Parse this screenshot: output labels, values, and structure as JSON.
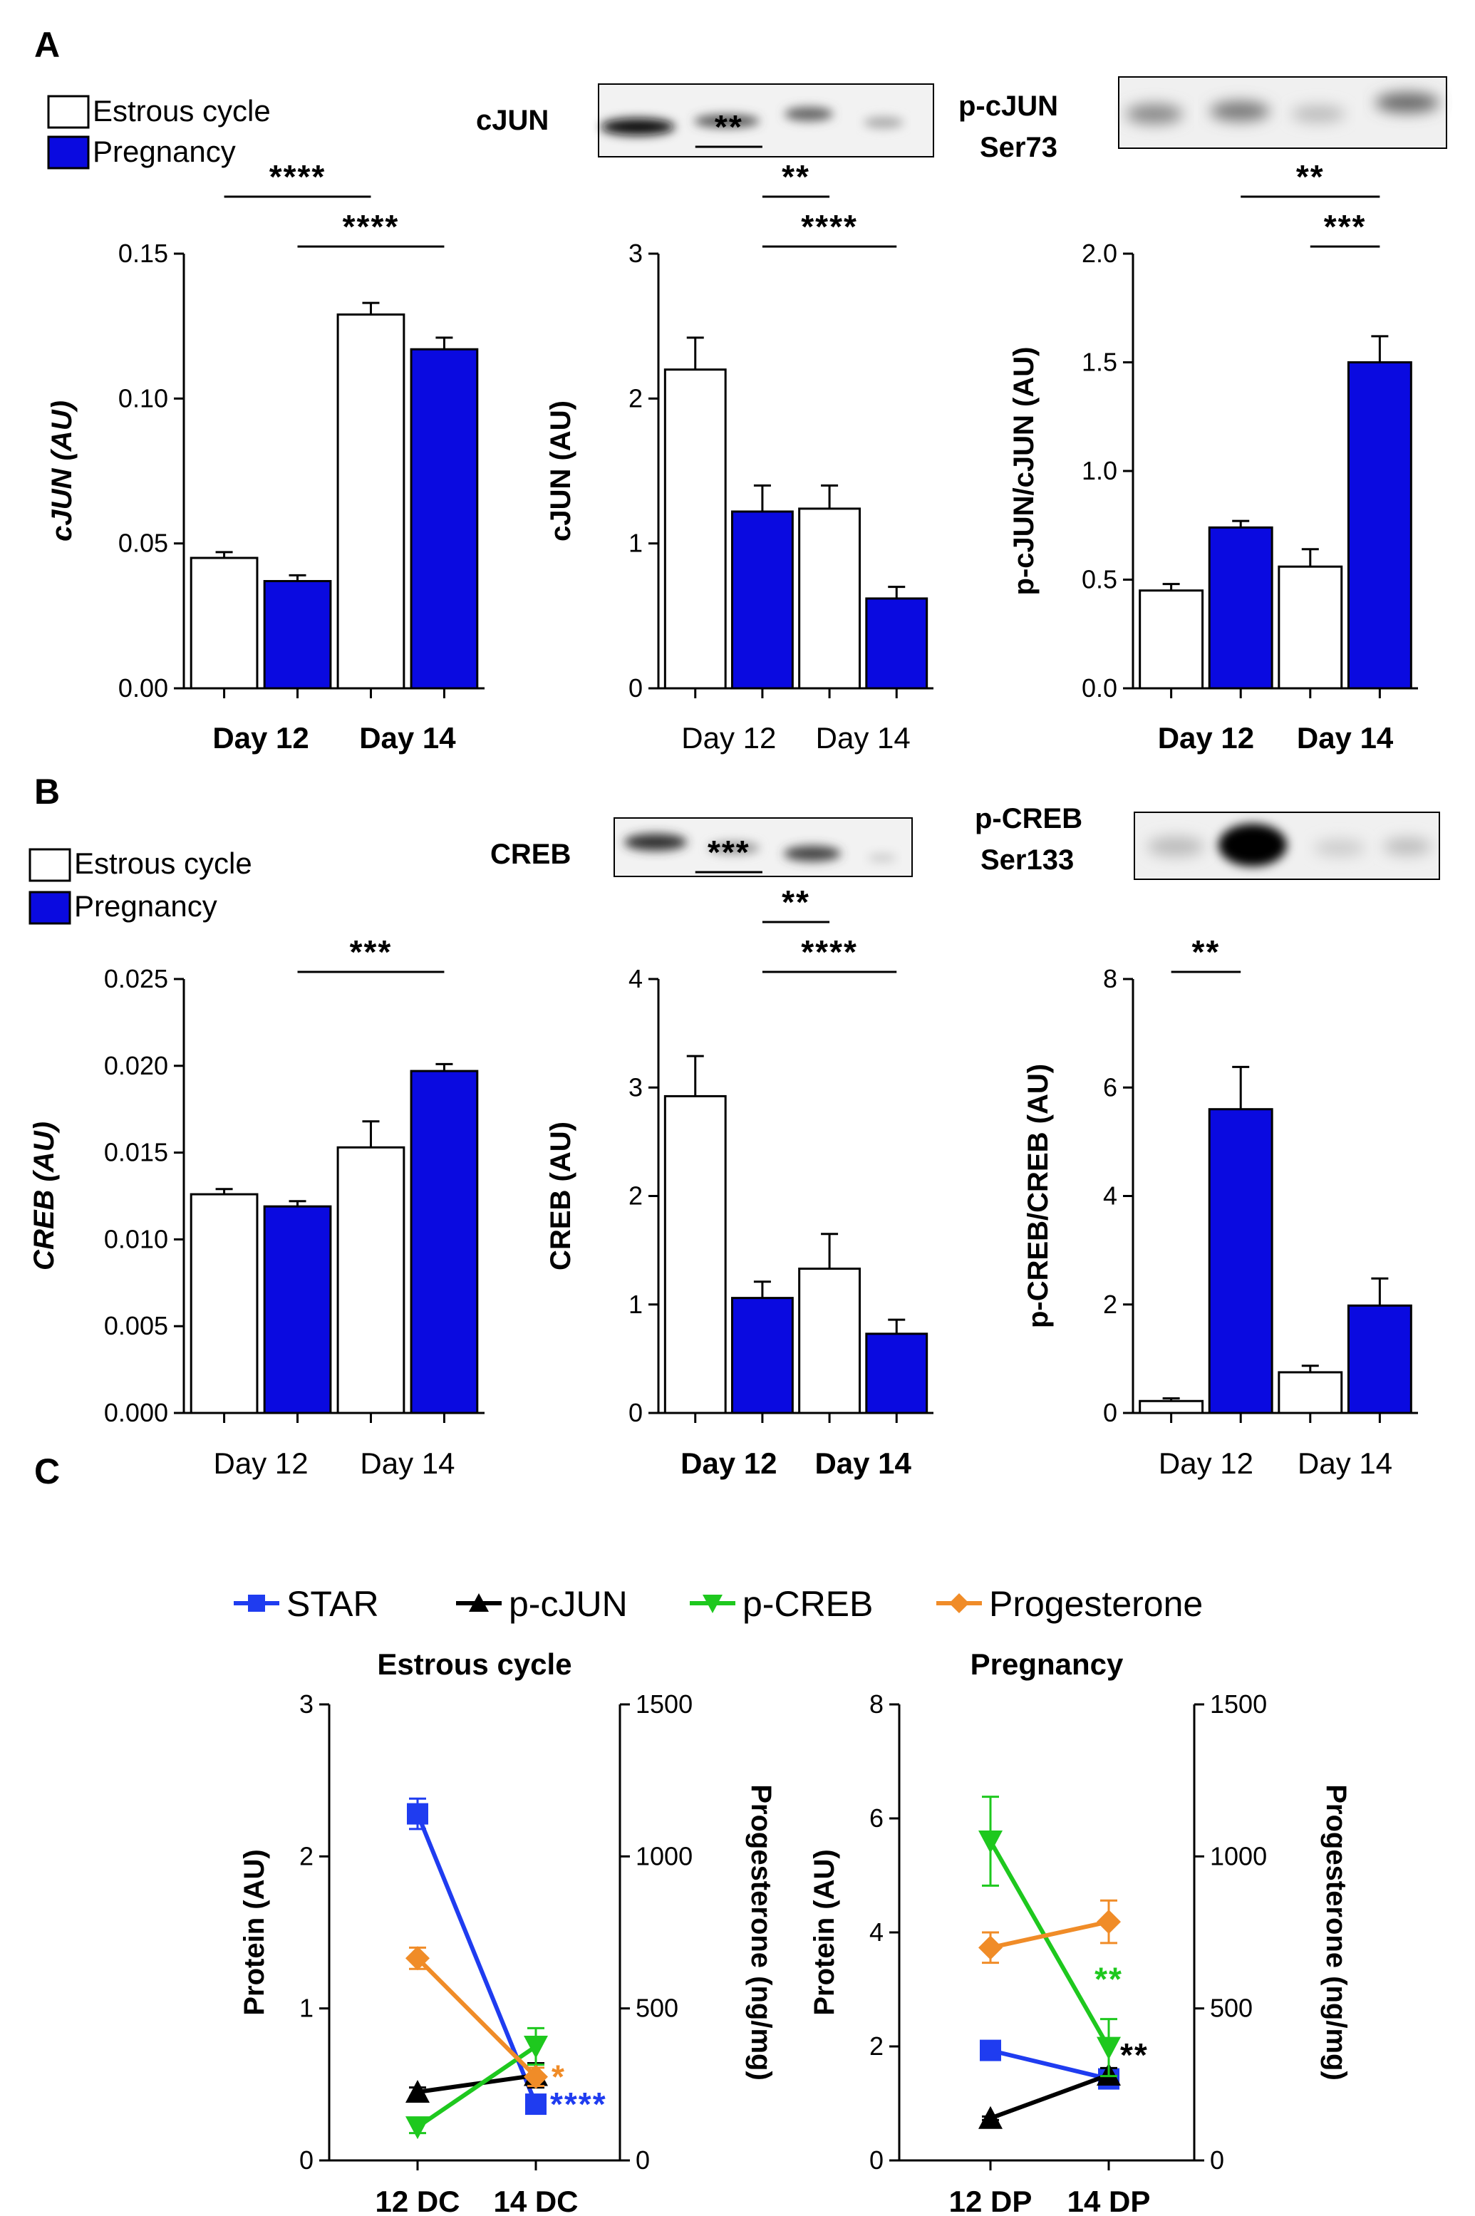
{
  "colors": {
    "pregnancy": "#0a0ae0",
    "estrous": "#ffffff",
    "star": "#1f3cf0",
    "pcjun": "#000000",
    "pcreb": "#1ec81e",
    "progesterone": "#f08c28"
  },
  "panelA": {
    "letter": "A",
    "legend": [
      "Estrous cycle",
      "Pregnancy"
    ],
    "blots": {
      "cjun": "cJUN",
      "pcjun_line1": "p-cJUN",
      "pcjun_line2": "Ser73"
    }
  },
  "panelB": {
    "letter": "B",
    "legend": [
      "Estrous cycle",
      "Pregnancy"
    ],
    "blots": {
      "creb": "CREB",
      "pcreb_line1": "p-CREB",
      "pcreb_line2": "Ser133"
    }
  },
  "panelC": {
    "letter": "C",
    "legend": [
      "STAR",
      "p-cJUN",
      "p-CREB",
      "Progesterone"
    ]
  },
  "chart_data": [
    {
      "id": "a1",
      "type": "bar",
      "ylabel": "cJUN (AU)",
      "italic": true,
      "ylim": [
        0,
        0.15
      ],
      "ticks": [
        "0.00",
        "0.05",
        "0.10",
        "0.15"
      ],
      "tickVals": [
        0,
        0.05,
        0.1,
        0.15
      ],
      "xlabels": [
        "Day 12",
        "Day 14"
      ],
      "xbold": true,
      "bars": [
        {
          "group": "Estrous cycle",
          "day": "Day 12",
          "value": 0.045,
          "err": 0.002
        },
        {
          "group": "Pregnancy",
          "day": "Day 12",
          "value": 0.037,
          "err": 0.002
        },
        {
          "group": "Estrous cycle",
          "day": "Day 14",
          "value": 0.129,
          "err": 0.004
        },
        {
          "group": "Pregnancy",
          "day": "Day 14",
          "value": 0.117,
          "err": 0.004
        }
      ],
      "sig": [
        {
          "from": 0,
          "to": 2,
          "label": "****"
        },
        {
          "from": 1,
          "to": 3,
          "label": "****"
        }
      ]
    },
    {
      "id": "a2",
      "type": "bar",
      "ylabel": "cJUN (AU)",
      "italic": false,
      "ylim": [
        0,
        3
      ],
      "ticks": [
        "0",
        "1",
        "2",
        "3"
      ],
      "tickVals": [
        0,
        1,
        2,
        3
      ],
      "xlabels": [
        "Day 12",
        "Day 14"
      ],
      "xbold": false,
      "bars": [
        {
          "group": "Estrous cycle",
          "day": "Day 12",
          "value": 2.2,
          "err": 0.22
        },
        {
          "group": "Pregnancy",
          "day": "Day 12",
          "value": 1.22,
          "err": 0.18
        },
        {
          "group": "Estrous cycle",
          "day": "Day 14",
          "value": 1.24,
          "err": 0.16
        },
        {
          "group": "Pregnancy",
          "day": "Day 14",
          "value": 0.62,
          "err": 0.08
        }
      ],
      "sig": [
        {
          "from": 0,
          "to": 1,
          "label": "**"
        },
        {
          "from": 1,
          "to": 2,
          "label": "**"
        },
        {
          "from": 1,
          "to": 3,
          "label": "****"
        }
      ]
    },
    {
      "id": "a3",
      "type": "bar",
      "ylabel": "p-cJUN/cJUN (AU)",
      "italic": false,
      "ylim": [
        0,
        2
      ],
      "ticks": [
        "0.0",
        "0.5",
        "1.0",
        "1.5",
        "2.0"
      ],
      "tickVals": [
        0,
        0.5,
        1,
        1.5,
        2
      ],
      "xlabels": [
        "Day 12",
        "Day 14"
      ],
      "xbold": true,
      "bars": [
        {
          "group": "Estrous cycle",
          "day": "Day 12",
          "value": 0.45,
          "err": 0.03
        },
        {
          "group": "Pregnancy",
          "day": "Day 12",
          "value": 0.74,
          "err": 0.03
        },
        {
          "group": "Estrous cycle",
          "day": "Day 14",
          "value": 0.56,
          "err": 0.08
        },
        {
          "group": "Pregnancy",
          "day": "Day 14",
          "value": 1.5,
          "err": 0.12
        }
      ],
      "sig": [
        {
          "from": 1,
          "to": 3,
          "label": "**"
        },
        {
          "from": 2,
          "to": 3,
          "label": "***"
        }
      ]
    },
    {
      "id": "b1",
      "type": "bar",
      "ylabel": "CREB (AU)",
      "italic": true,
      "ylim": [
        0,
        0.025
      ],
      "ticks": [
        "0.000",
        "0.005",
        "0.010",
        "0.015",
        "0.020",
        "0.025"
      ],
      "tickVals": [
        0,
        0.005,
        0.01,
        0.015,
        0.02,
        0.025
      ],
      "xlabels": [
        "Day 12",
        "Day 14"
      ],
      "xbold": false,
      "bars": [
        {
          "group": "Estrous cycle",
          "day": "Day 12",
          "value": 0.0126,
          "err": 0.0003
        },
        {
          "group": "Pregnancy",
          "day": "Day 12",
          "value": 0.0119,
          "err": 0.0003
        },
        {
          "group": "Estrous cycle",
          "day": "Day 14",
          "value": 0.0153,
          "err": 0.0015
        },
        {
          "group": "Pregnancy",
          "day": "Day 14",
          "value": 0.0197,
          "err": 0.0004
        }
      ],
      "sig": [
        {
          "from": 1,
          "to": 3,
          "label": "***"
        }
      ]
    },
    {
      "id": "b2",
      "type": "bar",
      "ylabel": "CREB (AU)",
      "italic": false,
      "ylim": [
        0,
        4
      ],
      "ticks": [
        "0",
        "1",
        "2",
        "3",
        "4"
      ],
      "tickVals": [
        0,
        1,
        2,
        3,
        4
      ],
      "xlabels": [
        "Day 12",
        "Day 14"
      ],
      "xbold": true,
      "bars": [
        {
          "group": "Estrous cycle",
          "day": "Day 12",
          "value": 2.92,
          "err": 0.37
        },
        {
          "group": "Pregnancy",
          "day": "Day 12",
          "value": 1.06,
          "err": 0.15
        },
        {
          "group": "Estrous cycle",
          "day": "Day 14",
          "value": 1.33,
          "err": 0.32
        },
        {
          "group": "Pregnancy",
          "day": "Day 14",
          "value": 0.73,
          "err": 0.13
        }
      ],
      "sig": [
        {
          "from": 0,
          "to": 1,
          "label": "***"
        },
        {
          "from": 1,
          "to": 2,
          "label": "**"
        },
        {
          "from": 1,
          "to": 3,
          "label": "****"
        }
      ]
    },
    {
      "id": "b3",
      "type": "bar",
      "ylabel": "p-CREB/CREB (AU)",
      "italic": false,
      "ylim": [
        0,
        8
      ],
      "ticks": [
        "0",
        "2",
        "4",
        "6",
        "8"
      ],
      "tickVals": [
        0,
        2,
        4,
        6,
        8
      ],
      "xlabels": [
        "Day 12",
        "Day 14"
      ],
      "xbold": false,
      "bars": [
        {
          "group": "Estrous cycle",
          "day": "Day 12",
          "value": 0.22,
          "err": 0.05
        },
        {
          "group": "Pregnancy",
          "day": "Day 12",
          "value": 5.6,
          "err": 0.78
        },
        {
          "group": "Estrous cycle",
          "day": "Day 14",
          "value": 0.75,
          "err": 0.12
        },
        {
          "group": "Pregnancy",
          "day": "Day 14",
          "value": 1.98,
          "err": 0.5
        }
      ],
      "sig": [
        {
          "from": 0,
          "to": 1,
          "label": "**"
        }
      ]
    },
    {
      "id": "c1",
      "type": "line",
      "title": "Estrous cycle",
      "ylabel": "Protein (AU)",
      "y2label": "Progesterone (ng/mg)",
      "ylim": [
        0,
        3
      ],
      "ticks": [
        "0",
        "1",
        "2",
        "3"
      ],
      "tickVals": [
        0,
        1,
        2,
        3
      ],
      "y2lim": [
        0,
        1500
      ],
      "ticks2": [
        "0",
        "500",
        "1000",
        "1500"
      ],
      "tickVals2": [
        0,
        500,
        1000,
        1500
      ],
      "categories": [
        "12 DC",
        "14 DC"
      ],
      "series": [
        {
          "name": "STAR",
          "axis": "left",
          "values": [
            2.28,
            0.37
          ],
          "err": [
            0.1,
            0.04
          ],
          "marker": "square",
          "sig": "****"
        },
        {
          "name": "p-cJUN",
          "axis": "left",
          "values": [
            0.45,
            0.56
          ],
          "err": [
            0.03,
            0.08
          ],
          "marker": "triangle",
          "sig": ""
        },
        {
          "name": "p-CREB",
          "axis": "left",
          "values": [
            0.22,
            0.75
          ],
          "err": [
            0.04,
            0.12
          ],
          "marker": "invtriangle",
          "sig": ""
        },
        {
          "name": "Progesterone",
          "axis": "right",
          "values": [
            665,
            275
          ],
          "err": [
            35,
            30
          ],
          "marker": "diamond",
          "sig": "*"
        }
      ]
    },
    {
      "id": "c2",
      "type": "line",
      "title": "Pregnancy",
      "ylabel": "Protein (AU)",
      "y2label": "Progesterone (ng/mg)",
      "ylim": [
        0,
        8
      ],
      "ticks": [
        "0",
        "2",
        "4",
        "6",
        "8"
      ],
      "tickVals": [
        0,
        2,
        4,
        6,
        8
      ],
      "y2lim": [
        0,
        1500
      ],
      "ticks2": [
        "0",
        "500",
        "1000",
        "1500"
      ],
      "tickVals2": [
        0,
        500,
        1000,
        1500
      ],
      "categories": [
        "12 DP",
        "14 DP"
      ],
      "series": [
        {
          "name": "STAR",
          "axis": "left",
          "values": [
            1.93,
            1.43
          ],
          "err": [
            0.1,
            0.1
          ],
          "marker": "square",
          "sig": ""
        },
        {
          "name": "p-cJUN",
          "axis": "left",
          "values": [
            0.74,
            1.5
          ],
          "err": [
            0.03,
            0.12
          ],
          "marker": "triangle",
          "sig": "**"
        },
        {
          "name": "p-CREB",
          "axis": "left",
          "values": [
            5.6,
            1.98
          ],
          "err": [
            0.78,
            0.5
          ],
          "marker": "invtriangle",
          "sig": "**"
        },
        {
          "name": "Progesterone",
          "axis": "right",
          "values": [
            700,
            785
          ],
          "err": [
            50,
            70
          ],
          "marker": "diamond",
          "sig": ""
        }
      ]
    }
  ]
}
